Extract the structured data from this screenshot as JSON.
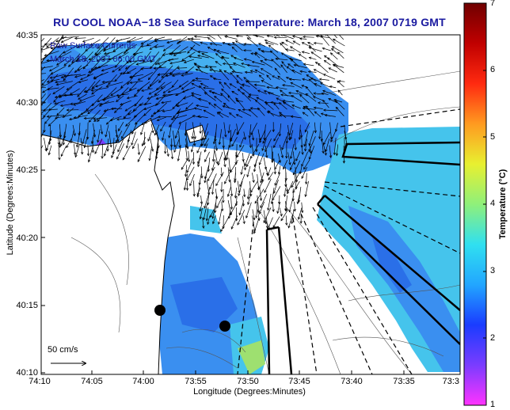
{
  "title": "RU COOL  NOAA−18  Sea Surface Temperature:  March 18, 2007 0719 GMT",
  "axes": {
    "ylabel": "Latitude (Degrees:Minutes)",
    "xlabel": "Longitude (Degrees:Minutes)",
    "yticks": [
      "40:35",
      "40:30",
      "40:25",
      "40:20",
      "40:15",
      "40:10"
    ],
    "xticks": [
      "74:10",
      "74:05",
      "74:00",
      "73:55",
      "73:50",
      "73:45",
      "73:40",
      "73:35",
      "73:3"
    ]
  },
  "legend": {
    "line1": "Raw Surface Currents",
    "line2": "March 18, 2007 06:00 GMT"
  },
  "scale": {
    "label": "50 cm/s"
  },
  "colorbar": {
    "label": "Temperature (°C)",
    "ticks": [
      "1",
      "2",
      "3",
      "4",
      "5",
      "6",
      "7"
    ],
    "colors": [
      "#ff33ff",
      "#7a3cff",
      "#1a3cff",
      "#22a6ff",
      "#30e0f0",
      "#8ff07a",
      "#e8f030",
      "#ff9a20",
      "#ff2a10",
      "#c00000",
      "#700000"
    ]
  },
  "colors": {
    "title": "#1a1aa0",
    "sst_blue": "#3a8ff0",
    "sst_cyan": "#45c4ec",
    "sst_green": "#9ee070",
    "land": "#ffffff"
  }
}
